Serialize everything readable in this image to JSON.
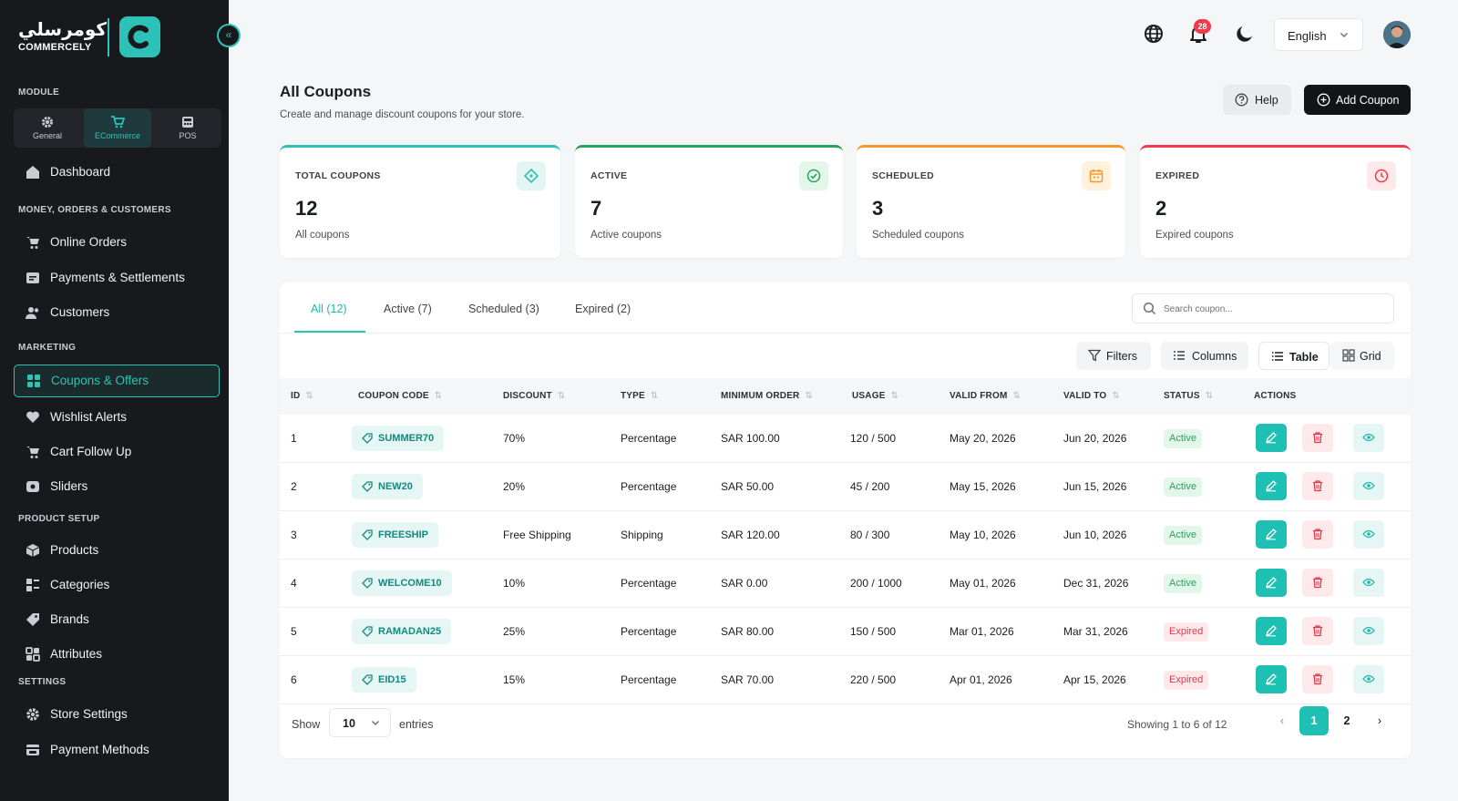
{
  "brand": {
    "arabic": "كومرسلي",
    "english": "COMMERCELY"
  },
  "sidebar": {
    "collapse_glyph": "«",
    "module_label": "MODULE",
    "modules": [
      {
        "label": "General",
        "icon": "gear-icon"
      },
      {
        "label": "ECommerce",
        "icon": "cart-icon",
        "active": true
      },
      {
        "label": "POS",
        "icon": "pos-icon"
      }
    ],
    "dashboard": "Dashboard",
    "section_money": "MONEY, ORDERS & CUSTOMERS",
    "online_orders": "Online Orders",
    "payments": "Payments & Settlements",
    "customers": "Customers",
    "section_marketing": "MARKETING",
    "coupons": "Coupons & Offers",
    "wishlist": "Wishlist Alerts",
    "cart_follow": "Cart Follow Up",
    "sliders": "Sliders",
    "section_product": "PRODUCT SETUP",
    "products": "Products",
    "categories": "Categories",
    "brands": "Brands",
    "attributes": "Attributes",
    "section_settings": "SETTINGS",
    "store_settings": "Store Settings",
    "payment_methods": "Payment Methods"
  },
  "topbar": {
    "notification_count": "28",
    "language": "English"
  },
  "page": {
    "title": "All Coupons",
    "subtitle": "Create and manage discount coupons for your store.",
    "help_label": "Help",
    "add_label": "Add Coupon"
  },
  "stats": [
    {
      "label": "TOTAL COUPONS",
      "value": "12",
      "sub": "All coupons",
      "color": "#2cc2b8"
    },
    {
      "label": "ACTIVE",
      "value": "7",
      "sub": "Active coupons",
      "color": "#27a35c"
    },
    {
      "label": "SCHEDULED",
      "value": "3",
      "sub": "Scheduled coupons",
      "color": "#f39a2b"
    },
    {
      "label": "EXPIRED",
      "value": "2",
      "sub": "Expired coupons",
      "color": "#ef3b4a"
    }
  ],
  "tabs": [
    "All (12)",
    "Active (7)",
    "Scheduled (3)",
    "Expired (2)"
  ],
  "search": {
    "placeholder": "Search coupon..."
  },
  "toolbar": {
    "filters": "Filters",
    "columns": "Columns",
    "table": "Table",
    "grid": "Grid"
  },
  "table": {
    "headers": [
      "ID",
      "COUPON CODE",
      "DISCOUNT",
      "TYPE",
      "MINIMUM ORDER",
      "USAGE",
      "VALID FROM",
      "VALID TO",
      "STATUS",
      "ACTIONS"
    ],
    "rows": [
      {
        "id": "1",
        "code": "SUMMER70",
        "discount": "70%",
        "type": "Percentage",
        "min": "SAR 100.00",
        "usage": "120 / 500",
        "from": "May 20, 2026",
        "to": "Jun 20, 2026",
        "status": "Active"
      },
      {
        "id": "2",
        "code": "NEW20",
        "discount": "20%",
        "type": "Percentage",
        "min": "SAR 50.00",
        "usage": "45 / 200",
        "from": "May 15, 2026",
        "to": "Jun 15, 2026",
        "status": "Active"
      },
      {
        "id": "3",
        "code": "FREESHIP",
        "discount": "Free Shipping",
        "type": "Shipping",
        "min": "SAR 120.00",
        "usage": "80 / 300",
        "from": "May 10, 2026",
        "to": "Jun 10, 2026",
        "status": "Active"
      },
      {
        "id": "4",
        "code": "WELCOME10",
        "discount": "10%",
        "type": "Percentage",
        "min": "SAR 0.00",
        "usage": "200 / 1000",
        "from": "May 01, 2026",
        "to": "Dec 31, 2026",
        "status": "Active"
      },
      {
        "id": "5",
        "code": "RAMADAN25",
        "discount": "25%",
        "type": "Percentage",
        "min": "SAR 80.00",
        "usage": "150 / 500",
        "from": "Mar 01, 2026",
        "to": "Mar 31, 2026",
        "status": "Expired"
      },
      {
        "id": "6",
        "code": "EID15",
        "discount": "15%",
        "type": "Percentage",
        "min": "SAR 70.00",
        "usage": "220 / 500",
        "from": "Apr 01, 2026",
        "to": "Apr 15, 2026",
        "status": "Expired"
      }
    ]
  },
  "footer": {
    "show": "Show",
    "entries_value": "10",
    "entries": "entries",
    "showing": "Showing 1 to 6 of 12",
    "pages": [
      "1",
      "2"
    ]
  },
  "colors": {
    "accent": "#2cc2b8",
    "sidebar_bg": "#17191c"
  }
}
